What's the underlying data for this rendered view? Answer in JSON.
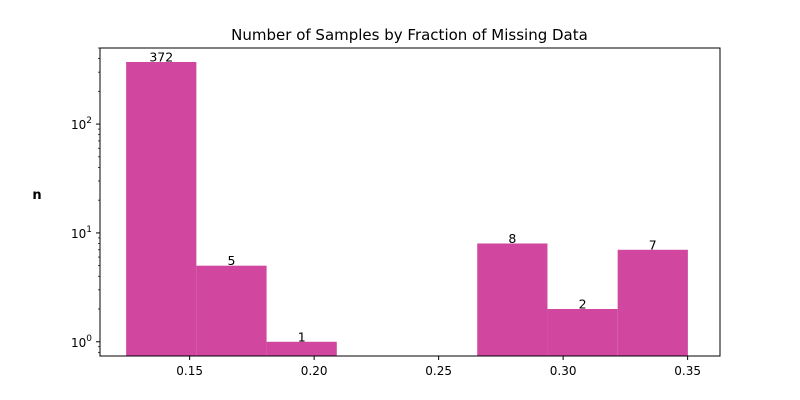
{
  "chart_data": {
    "type": "bar",
    "title": "Number of Samples  by Fraction of Missing Data",
    "xlabel": "",
    "ylabel": "n",
    "yscale": "log",
    "xlim": [
      0.114,
      0.363
    ],
    "ylim": [
      0.74,
      500
    ],
    "bar_color": "#d147a0",
    "bins": [
      {
        "x_start": 0.1245,
        "x_end": 0.1527,
        "value": 372,
        "label": "372"
      },
      {
        "x_start": 0.1527,
        "x_end": 0.1809,
        "value": 5,
        "label": "5"
      },
      {
        "x_start": 0.1809,
        "x_end": 0.2091,
        "value": 1,
        "label": "1"
      },
      {
        "x_start": 0.2091,
        "x_end": 0.2373,
        "value": 0,
        "label": ""
      },
      {
        "x_start": 0.2373,
        "x_end": 0.2655,
        "value": 0,
        "label": ""
      },
      {
        "x_start": 0.2655,
        "x_end": 0.2937,
        "value": 8,
        "label": "8"
      },
      {
        "x_start": 0.2937,
        "x_end": 0.3219,
        "value": 2,
        "label": "2"
      },
      {
        "x_start": 0.3219,
        "x_end": 0.3501,
        "value": 7,
        "label": "7"
      }
    ],
    "x_ticks": [
      {
        "value": 0.15,
        "label": "0.15"
      },
      {
        "value": 0.2,
        "label": "0.20"
      },
      {
        "value": 0.25,
        "label": "0.25"
      },
      {
        "value": 0.3,
        "label": "0.30"
      },
      {
        "value": 0.35,
        "label": "0.35"
      }
    ],
    "y_ticks": [
      {
        "value": 1,
        "base": "10",
        "exp": "0"
      },
      {
        "value": 10,
        "base": "10",
        "exp": "1"
      },
      {
        "value": 100,
        "base": "10",
        "exp": "2"
      }
    ],
    "grid": false,
    "legend": "none"
  }
}
